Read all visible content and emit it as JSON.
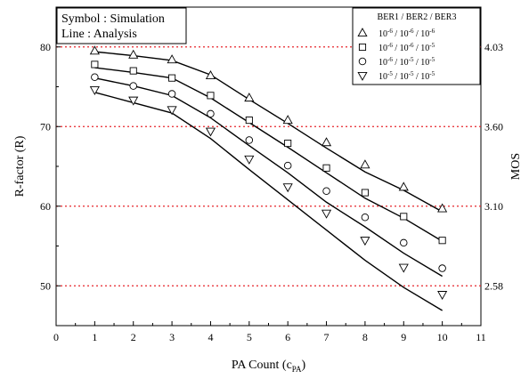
{
  "chart_data": {
    "type": "line",
    "xlabel": "PA Count (c",
    "xlabel_sub": "PA",
    "xlabel_close": ")",
    "ylabel": "R-factor (R)",
    "y2label": "MOS",
    "xlim": [
      0,
      11
    ],
    "ylim": [
      45,
      85
    ],
    "xticks": [
      0,
      1,
      2,
      3,
      4,
      5,
      6,
      7,
      8,
      9,
      10,
      11
    ],
    "yticks": [
      50,
      60,
      70,
      80
    ],
    "reference_lines": [
      {
        "y": 80,
        "label": "4.03"
      },
      {
        "y": 70,
        "label": "3.60"
      },
      {
        "y": 60,
        "label": "3.10"
      },
      {
        "y": 50,
        "label": "2.58"
      }
    ],
    "note_lines": [
      "Symbol : Simulation",
      "Line : Analysis"
    ],
    "legend_title": "BER1 / BER2 / BER3",
    "legend_entries": [
      {
        "marker": "triangle-up",
        "text": [
          "10",
          "-6",
          " / 10",
          "-6",
          " / 10",
          "-6"
        ]
      },
      {
        "marker": "square",
        "text": [
          "10",
          "-6",
          " / 10",
          "-6",
          " / 10",
          "-5"
        ]
      },
      {
        "marker": "circle",
        "text": [
          "10",
          "-6",
          " / 10",
          "-5",
          " / 10",
          "-5"
        ]
      },
      {
        "marker": "triangle-down",
        "text": [
          "10",
          "-5",
          " / 10",
          "-5",
          " / 10",
          "-5"
        ]
      }
    ],
    "x": [
      1,
      2,
      3,
      4,
      5,
      6,
      7,
      8,
      9,
      10
    ],
    "series": [
      {
        "marker": "triangle-up",
        "simulation": [
          79.5,
          79.0,
          78.4,
          76.4,
          73.6,
          70.8,
          68.0,
          65.2,
          62.4,
          59.7
        ],
        "analysis": [
          79.4,
          78.9,
          78.3,
          76.5,
          73.4,
          70.4,
          67.3,
          64.3,
          62.0,
          59.3
        ]
      },
      {
        "marker": "square",
        "simulation": [
          77.8,
          77.0,
          76.1,
          73.9,
          70.8,
          67.9,
          64.8,
          61.7,
          58.7,
          55.7
        ],
        "analysis": [
          77.4,
          76.8,
          76.1,
          73.6,
          70.5,
          67.4,
          64.2,
          61.0,
          58.5,
          55.6
        ]
      },
      {
        "marker": "circle",
        "simulation": [
          76.2,
          75.1,
          74.1,
          71.6,
          68.3,
          65.1,
          61.9,
          58.6,
          55.4,
          52.2
        ],
        "analysis": [
          76.1,
          75.1,
          73.9,
          71.1,
          67.6,
          64.2,
          60.5,
          57.4,
          54.1,
          51.2
        ]
      },
      {
        "marker": "triangle-down",
        "simulation": [
          74.6,
          73.3,
          72.1,
          69.4,
          65.9,
          62.4,
          59.1,
          55.7,
          52.3,
          48.9
        ],
        "analysis": [
          74.3,
          73.0,
          71.7,
          68.5,
          64.6,
          60.8,
          57.0,
          53.2,
          49.8,
          46.9
        ]
      }
    ],
    "grid": false,
    "legend_position": "top-right",
    "colors": {
      "reference_line": "#e8262b",
      "series": "#000000",
      "axis": "#000000"
    }
  }
}
